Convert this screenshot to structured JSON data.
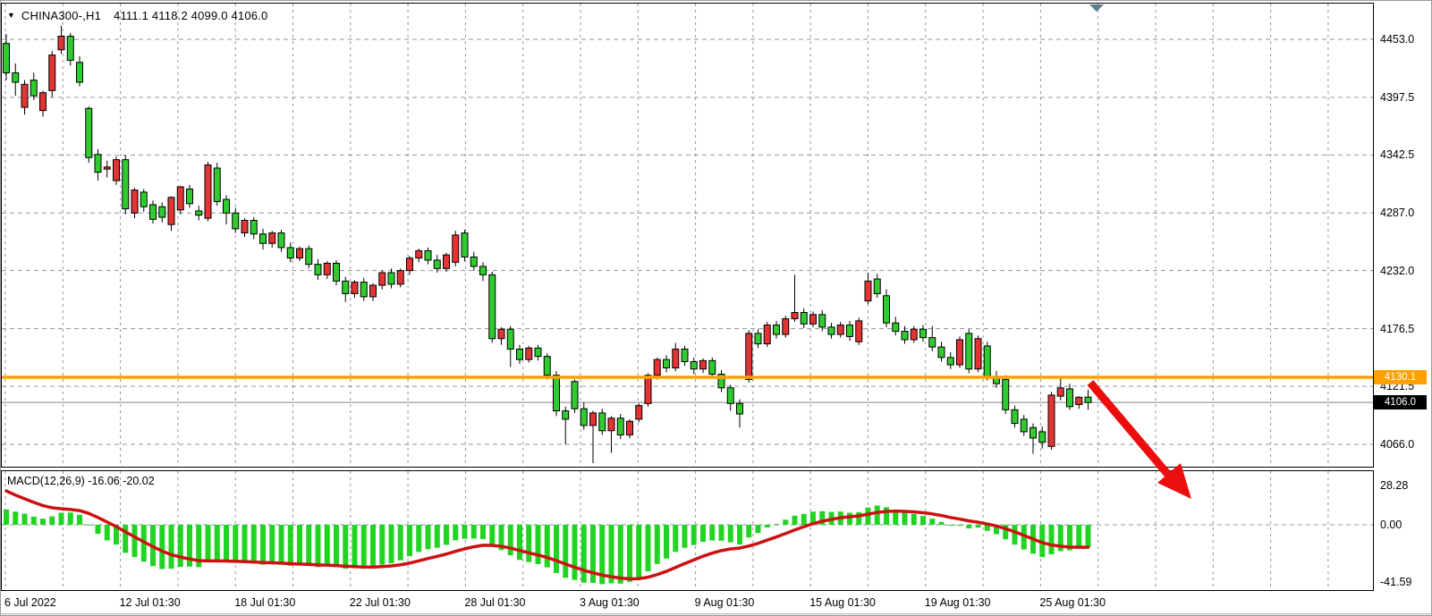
{
  "title": {
    "symbol": "CHINA300-,H1",
    "quote": "4111.1 4118.2 4099.0 4106.0",
    "dropdown_icon": "black-down-triangle"
  },
  "price_axis": {
    "labels": [
      "4453.0",
      "4397.5",
      "4342.5",
      "4287.0",
      "4232.0",
      "4176.5",
      "4121.5",
      "4066.0"
    ],
    "values": [
      4453.0,
      4397.5,
      4342.5,
      4287.0,
      4232.0,
      4176.5,
      4121.5,
      4066.0
    ],
    "hline_badge": "4130.1",
    "last_badge": "4106.0"
  },
  "time_axis": {
    "labels": [
      "6 Jul 2022",
      "12 Jul 01:30",
      "18 Jul 01:30",
      "22 Jul 01:30",
      "28 Jul 01:30",
      "3 Aug 01:30",
      "9 Aug 01:30",
      "15 Aug 01:30",
      "19 Aug 01:30",
      "25 Aug 01:30"
    ]
  },
  "indicator": {
    "label": "MACD(12,26,9) -16.06 -20.02",
    "axis_labels": [
      "28.28",
      "0.00",
      "-41.59"
    ],
    "axis_values": [
      28.28,
      0.0,
      -41.59
    ]
  },
  "colors": {
    "bull_candle": "#e23434",
    "bear_candle": "#2fcb2f",
    "candle_border": "#000000",
    "wick": "#000000",
    "grid": "#8a95a0",
    "hline": "#ffa000",
    "last_price_line": "#808080",
    "macd_histogram": "#22d422",
    "macd_signal": "#cc1111",
    "arrow": "#ec0d0d",
    "bar_marker": "#5f7e8c"
  },
  "chart_data": {
    "type": "candlestick",
    "symbol": "CHINA300-",
    "timeframe": "H1",
    "title": "CHINA300-,H1",
    "current_bar_ohlc": {
      "open": 4111.1,
      "high": 4118.2,
      "low": 4099.0,
      "close": 4106.0
    },
    "price_gridlines": [
      4453.0,
      4397.5,
      4342.5,
      4287.0,
      4232.0,
      4176.5,
      4121.5,
      4066.0
    ],
    "horizontal_line": 4130.1,
    "last_price": 4106.0,
    "x_tick_labels": [
      "6 Jul 2022",
      "12 Jul 01:30",
      "18 Jul 01:30",
      "22 Jul 01:30",
      "28 Jul 01:30",
      "3 Aug 01:30",
      "9 Aug 01:30",
      "15 Aug 01:30",
      "19 Aug 01:30",
      "25 Aug 01:30"
    ],
    "indicator": {
      "name": "MACD",
      "fast": 12,
      "slow": 26,
      "signal": 9,
      "main_value": -16.06,
      "signal_value": -20.02,
      "scale_max": 28.28,
      "scale_min": -41.59
    },
    "annotation_arrow": {
      "from_bar": 119,
      "from_price": 4125,
      "direction": "down-right",
      "meaning": "bearish-breakdown"
    },
    "candles": [
      [
        4449,
        4458,
        4414,
        4421
      ],
      [
        4421,
        4430,
        4399,
        4412
      ],
      [
        4388,
        4414,
        4381,
        4410
      ],
      [
        4414,
        4421,
        4395,
        4399
      ],
      [
        4385,
        4404,
        4379,
        4402
      ],
      [
        4404,
        4442,
        4398,
        4438
      ],
      [
        4443,
        4466,
        4439,
        4456
      ],
      [
        4456,
        4459,
        4428,
        4433
      ],
      [
        4431,
        4437,
        4408,
        4412
      ],
      [
        4387,
        4389,
        4335,
        4340
      ],
      [
        4343,
        4348,
        4318,
        4326
      ],
      [
        4329,
        4337,
        4321,
        4331
      ],
      [
        4318,
        4341,
        4314,
        4338
      ],
      [
        4338,
        4342,
        4286,
        4291
      ],
      [
        4287,
        4311,
        4282,
        4309
      ],
      [
        4307,
        4310,
        4288,
        4293
      ],
      [
        4295,
        4299,
        4277,
        4281
      ],
      [
        4293,
        4297,
        4278,
        4283
      ],
      [
        4276,
        4303,
        4270,
        4302
      ],
      [
        4290,
        4313,
        4286,
        4312
      ],
      [
        4310,
        4314,
        4292,
        4296
      ],
      [
        4289,
        4294,
        4280,
        4285
      ],
      [
        4282,
        4336,
        4279,
        4333
      ],
      [
        4330,
        4335,
        4294,
        4298
      ],
      [
        4300,
        4304,
        4276,
        4287
      ],
      [
        4287,
        4292,
        4268,
        4272
      ],
      [
        4268,
        4282,
        4264,
        4280
      ],
      [
        4280,
        4283,
        4262,
        4267
      ],
      [
        4267,
        4272,
        4252,
        4258
      ],
      [
        4258,
        4270,
        4254,
        4268
      ],
      [
        4268,
        4271,
        4250,
        4254
      ],
      [
        4254,
        4259,
        4240,
        4244
      ],
      [
        4244,
        4255,
        4241,
        4253
      ],
      [
        4253,
        4256,
        4234,
        4238
      ],
      [
        4238,
        4243,
        4223,
        4228
      ],
      [
        4228,
        4241,
        4224,
        4239
      ],
      [
        4239,
        4242,
        4218,
        4222
      ],
      [
        4222,
        4226,
        4202,
        4210
      ],
      [
        4210,
        4223,
        4206,
        4221
      ],
      [
        4221,
        4225,
        4203,
        4207
      ],
      [
        4207,
        4220,
        4203,
        4218
      ],
      [
        4218,
        4232,
        4214,
        4230
      ],
      [
        4230,
        4234,
        4215,
        4219
      ],
      [
        4219,
        4234,
        4216,
        4232
      ],
      [
        4232,
        4246,
        4228,
        4244
      ],
      [
        4244,
        4253,
        4240,
        4251
      ],
      [
        4251,
        4254,
        4238,
        4242
      ],
      [
        4242,
        4247,
        4230,
        4234
      ],
      [
        4234,
        4249,
        4231,
        4247
      ],
      [
        4240,
        4270,
        4236,
        4266
      ],
      [
        4268,
        4271,
        4241,
        4245
      ],
      [
        4245,
        4250,
        4232,
        4236
      ],
      [
        4236,
        4240,
        4222,
        4228
      ],
      [
        4228,
        4231,
        4163,
        4167
      ],
      [
        4167,
        4178,
        4161,
        4176
      ],
      [
        4176,
        4179,
        4140,
        4157
      ],
      [
        4157,
        4161,
        4143,
        4147
      ],
      [
        4147,
        4160,
        4144,
        4158
      ],
      [
        4158,
        4161,
        4146,
        4150
      ],
      [
        4150,
        4153,
        4128,
        4132
      ],
      [
        4132,
        4136,
        4093,
        4098
      ],
      [
        4098,
        4102,
        4066,
        4090
      ],
      [
        4126,
        4128,
        4096,
        4100
      ],
      [
        4100,
        4106,
        4080,
        4084
      ],
      [
        4084,
        4098,
        4048,
        4096
      ],
      [
        4096,
        4100,
        4075,
        4079
      ],
      [
        4079,
        4093,
        4058,
        4091
      ],
      [
        4091,
        4095,
        4071,
        4075
      ],
      [
        4075,
        4090,
        4072,
        4088
      ],
      [
        4090,
        4105,
        4087,
        4103
      ],
      [
        4105,
        4134,
        4102,
        4132
      ],
      [
        4132,
        4149,
        4128,
        4147
      ],
      [
        4147,
        4151,
        4135,
        4139
      ],
      [
        4139,
        4163,
        4136,
        4157
      ],
      [
        4157,
        4160,
        4141,
        4145
      ],
      [
        4145,
        4149,
        4133,
        4138
      ],
      [
        4138,
        4148,
        4134,
        4146
      ],
      [
        4146,
        4149,
        4129,
        4133
      ],
      [
        4133,
        4137,
        4116,
        4120
      ],
      [
        4120,
        4123,
        4098,
        4105
      ],
      [
        4105,
        4109,
        4082,
        4095
      ],
      [
        4128,
        4175,
        4125,
        4172
      ],
      [
        4172,
        4176,
        4158,
        4162
      ],
      [
        4162,
        4183,
        4159,
        4180
      ],
      [
        4180,
        4184,
        4167,
        4171
      ],
      [
        4171,
        4189,
        4168,
        4186
      ],
      [
        4186,
        4228,
        4183,
        4192
      ],
      [
        4192,
        4196,
        4177,
        4181
      ],
      [
        4181,
        4193,
        4178,
        4190
      ],
      [
        4190,
        4194,
        4174,
        4178
      ],
      [
        4178,
        4182,
        4167,
        4171
      ],
      [
        4171,
        4183,
        4168,
        4180
      ],
      [
        4180,
        4184,
        4165,
        4169
      ],
      [
        4164,
        4187,
        4161,
        4184
      ],
      [
        4203,
        4230,
        4200,
        4222
      ],
      [
        4224,
        4229,
        4206,
        4210
      ],
      [
        4208,
        4214,
        4178,
        4182
      ],
      [
        4182,
        4188,
        4170,
        4174
      ],
      [
        4174,
        4179,
        4162,
        4166
      ],
      [
        4166,
        4179,
        4163,
        4176
      ],
      [
        4176,
        4180,
        4164,
        4168
      ],
      [
        4168,
        4179,
        4155,
        4159
      ],
      [
        4159,
        4164,
        4145,
        4149
      ],
      [
        4149,
        4154,
        4138,
        4142
      ],
      [
        4142,
        4169,
        4139,
        4166
      ],
      [
        4172,
        4176,
        4134,
        4138
      ],
      [
        4138,
        4170,
        4135,
        4167
      ],
      [
        4160,
        4164,
        4127,
        4131
      ],
      [
        4131,
        4136,
        4120,
        4124
      ],
      [
        4128,
        4132,
        4095,
        4099
      ],
      [
        4099,
        4103,
        4082,
        4086
      ],
      [
        4090,
        4094,
        4074,
        4078
      ],
      [
        4082,
        4086,
        4057,
        4072
      ],
      [
        4078,
        4083,
        4062,
        4068
      ],
      [
        4064,
        4116,
        4061,
        4113
      ],
      [
        4112,
        4131,
        4108,
        4120
      ],
      [
        4119,
        4124,
        4099,
        4102
      ],
      [
        4104,
        4112,
        4100,
        4111
      ],
      [
        4111.1,
        4118.2,
        4099.0,
        4106.0
      ]
    ]
  }
}
